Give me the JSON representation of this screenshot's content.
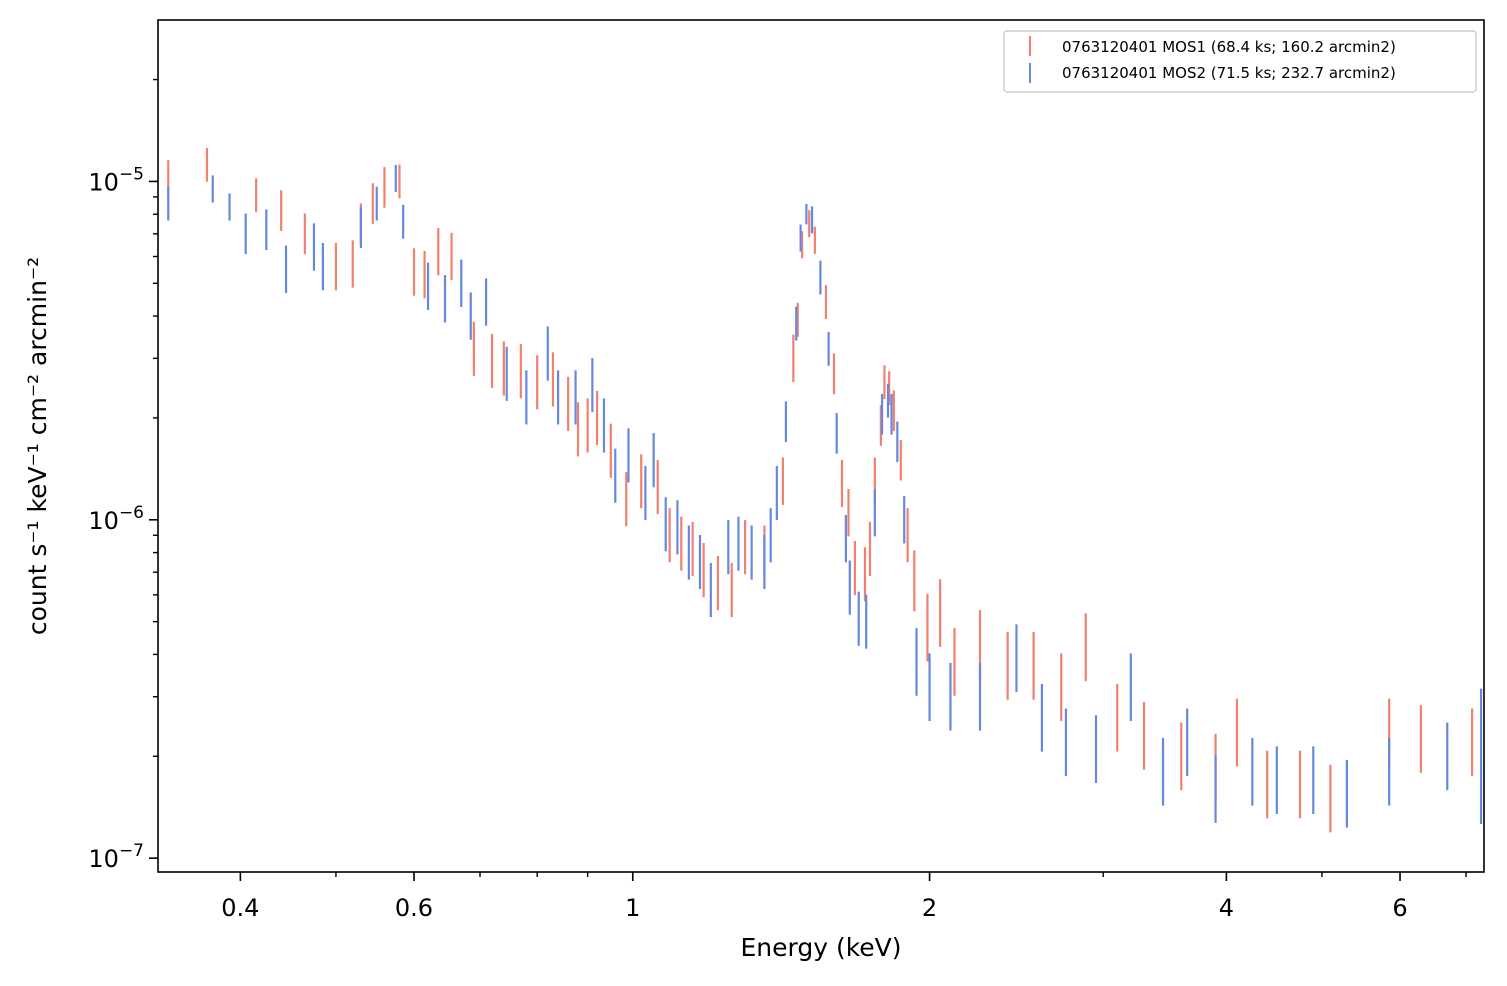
{
  "chart_data": {
    "type": "scatter",
    "title": "",
    "xlabel": "Energy (keV)",
    "ylabel": "count s⁻¹ keV⁻¹ cm⁻² arcmin⁻²",
    "xscale": "log",
    "yscale": "log",
    "xlim": [
      0.33,
      7.3
    ],
    "ylim": [
      9.1e-08,
      3e-05
    ],
    "x_ticks": [
      {
        "value": 0.4,
        "label": "0.4"
      },
      {
        "value": 0.6,
        "label": "0.6"
      },
      {
        "value": 1,
        "label": "1"
      },
      {
        "value": 2,
        "label": "2"
      },
      {
        "value": 4,
        "label": "4"
      },
      {
        "value": 6,
        "label": "6"
      }
    ],
    "y_ticks": [
      {
        "value": 1e-07,
        "base": "10",
        "exp": "−7"
      },
      {
        "value": 1e-06,
        "base": "10",
        "exp": "−6"
      },
      {
        "value": 1e-05,
        "base": "10",
        "exp": "−5"
      }
    ],
    "grid": false,
    "legend_position": "top-right",
    "series": [
      {
        "name": "0763120401 MOS1 (68.4 ks; 160.2 arcmin2)",
        "color": "#f08070",
        "points": [
          [
            0.338,
            1.03e-05,
            0.05
          ],
          [
            0.37,
            1.12e-05,
            0.05
          ],
          [
            0.415,
            9.1e-06,
            0.05
          ],
          [
            0.44,
            8.2e-06,
            0.06
          ],
          [
            0.465,
            7e-06,
            0.06
          ],
          [
            0.5,
            5.6e-06,
            0.07
          ],
          [
            0.52,
            5.7e-06,
            0.07
          ],
          [
            0.53,
            7.5e-06,
            0.06
          ],
          [
            0.545,
            8.6e-06,
            0.06
          ],
          [
            0.56,
            9.6e-06,
            0.06
          ],
          [
            0.58,
            1e-05,
            0.05
          ],
          [
            0.6,
            5.4e-06,
            0.07
          ],
          [
            0.615,
            5.3e-06,
            0.07
          ],
          [
            0.635,
            6.2e-06,
            0.07
          ],
          [
            0.655,
            6e-06,
            0.07
          ],
          [
            0.69,
            3.2e-06,
            0.08
          ],
          [
            0.72,
            2.95e-06,
            0.08
          ],
          [
            0.74,
            2.8e-06,
            0.08
          ],
          [
            0.77,
            2.75e-06,
            0.08
          ],
          [
            0.8,
            2.55e-06,
            0.08
          ],
          [
            0.83,
            2.6e-06,
            0.08
          ],
          [
            0.86,
            2.2e-06,
            0.08
          ],
          [
            0.88,
            1.85e-06,
            0.08
          ],
          [
            0.9,
            1.9e-06,
            0.08
          ],
          [
            0.92,
            2e-06,
            0.08
          ],
          [
            0.95,
            1.6e-06,
            0.08
          ],
          [
            0.985,
            1.15e-06,
            0.08
          ],
          [
            1.02,
            1.3e-06,
            0.08
          ],
          [
            1.06,
            1.25e-06,
            0.08
          ],
          [
            1.09,
            9e-07,
            0.08
          ],
          [
            1.12,
            8.5e-07,
            0.08
          ],
          [
            1.15,
            8.2e-07,
            0.08
          ],
          [
            1.18,
            7.1e-07,
            0.08
          ],
          [
            1.22,
            6.5e-07,
            0.08
          ],
          [
            1.26,
            6.2e-07,
            0.08
          ],
          [
            1.3,
            8.3e-07,
            0.08
          ],
          [
            1.36,
            8e-07,
            0.08
          ],
          [
            1.42,
            1.3e-06,
            0.07
          ],
          [
            1.455,
            3e-06,
            0.07
          ],
          [
            1.47,
            3.9e-06,
            0.05
          ],
          [
            1.485,
            6.5e-06,
            0.04
          ],
          [
            1.51,
            7.5e-06,
            0.04
          ],
          [
            1.53,
            6.7e-06,
            0.04
          ],
          [
            1.57,
            4.4e-06,
            0.05
          ],
          [
            1.6,
            2.7e-06,
            0.06
          ],
          [
            1.63,
            1.28e-06,
            0.07
          ],
          [
            1.655,
            1.05e-06,
            0.07
          ],
          [
            1.68,
            7.2e-07,
            0.08
          ],
          [
            1.72,
            6.9e-07,
            0.08
          ],
          [
            1.74,
            8.2e-07,
            0.08
          ],
          [
            1.76,
            1.3e-06,
            0.07
          ],
          [
            1.785,
            1.9e-06,
            0.06
          ],
          [
            1.8,
            2.55e-06,
            0.05
          ],
          [
            1.82,
            2.45e-06,
            0.05
          ],
          [
            1.84,
            2.1e-06,
            0.06
          ],
          [
            1.87,
            1.5e-06,
            0.06
          ],
          [
            1.9,
            9e-07,
            0.08
          ],
          [
            1.93,
            6.6e-07,
            0.09
          ],
          [
            1.99,
            4.8e-07,
            0.1
          ],
          [
            2.05,
            5.3e-07,
            0.1
          ],
          [
            2.12,
            3.8e-07,
            0.1
          ],
          [
            2.25,
            4.3e-07,
            0.1
          ],
          [
            2.4,
            3.7e-07,
            0.1
          ],
          [
            2.55,
            3.7e-07,
            0.1
          ],
          [
            2.72,
            3.2e-07,
            0.1
          ],
          [
            2.88,
            4.2e-07,
            0.1
          ],
          [
            3.1,
            2.6e-07,
            0.1
          ],
          [
            3.3,
            2.3e-07,
            0.1
          ],
          [
            3.6,
            2e-07,
            0.1
          ],
          [
            3.9,
            1.85e-07,
            0.1
          ],
          [
            4.1,
            2.35e-07,
            0.1
          ],
          [
            4.4,
            1.65e-07,
            0.1
          ],
          [
            4.75,
            1.65e-07,
            0.1
          ],
          [
            5.1,
            1.5e-07,
            0.1
          ],
          [
            5.85,
            2.35e-07,
            0.1
          ],
          [
            6.3,
            2.25e-07,
            0.1
          ],
          [
            7.1,
            2.2e-07,
            0.1
          ]
        ]
      },
      {
        "name": "0763120401 MOS2 (71.5 ks; 232.7 arcmin2)",
        "color": "#6688dd",
        "points": [
          [
            0.338,
            8.6e-06,
            0.05
          ],
          [
            0.375,
            9.5e-06,
            0.04
          ],
          [
            0.39,
            8.4e-06,
            0.04
          ],
          [
            0.405,
            7e-06,
            0.06
          ],
          [
            0.425,
            7.2e-06,
            0.06
          ],
          [
            0.445,
            5.5e-06,
            0.07
          ],
          [
            0.475,
            6.4e-06,
            0.07
          ],
          [
            0.485,
            5.6e-06,
            0.07
          ],
          [
            0.53,
            7.3e-06,
            0.06
          ],
          [
            0.55,
            8.6e-06,
            0.05
          ],
          [
            0.575,
            1.02e-05,
            0.04
          ],
          [
            0.585,
            7.6e-06,
            0.05
          ],
          [
            0.62,
            4.9e-06,
            0.07
          ],
          [
            0.645,
            4.5e-06,
            0.07
          ],
          [
            0.67,
            5e-06,
            0.07
          ],
          [
            0.685,
            4e-06,
            0.07
          ],
          [
            0.71,
            4.4e-06,
            0.07
          ],
          [
            0.745,
            2.7e-06,
            0.08
          ],
          [
            0.78,
            2.3e-06,
            0.08
          ],
          [
            0.82,
            3.1e-06,
            0.08
          ],
          [
            0.84,
            2.3e-06,
            0.08
          ],
          [
            0.875,
            2.3e-06,
            0.08
          ],
          [
            0.91,
            2.5e-06,
            0.08
          ],
          [
            0.935,
            1.9e-06,
            0.08
          ],
          [
            0.96,
            1.35e-06,
            0.08
          ],
          [
            0.99,
            1.55e-06,
            0.08
          ],
          [
            1.03,
            1.2e-06,
            0.08
          ],
          [
            1.05,
            1.5e-06,
            0.08
          ],
          [
            1.08,
            9.7e-07,
            0.08
          ],
          [
            1.11,
            9.5e-07,
            0.08
          ],
          [
            1.14,
            8e-07,
            0.08
          ],
          [
            1.17,
            7.5e-07,
            0.08
          ],
          [
            1.2,
            6.2e-07,
            0.08
          ],
          [
            1.25,
            8.3e-07,
            0.08
          ],
          [
            1.28,
            8.5e-07,
            0.08
          ],
          [
            1.32,
            8e-07,
            0.08
          ],
          [
            1.36,
            7.5e-07,
            0.08
          ],
          [
            1.38,
            9e-07,
            0.08
          ],
          [
            1.4,
            1.2e-06,
            0.08
          ],
          [
            1.43,
            1.95e-06,
            0.06
          ],
          [
            1.465,
            3.8e-06,
            0.05
          ],
          [
            1.48,
            6.8e-06,
            0.04
          ],
          [
            1.5,
            8e-06,
            0.03
          ],
          [
            1.52,
            7.7e-06,
            0.04
          ],
          [
            1.55,
            5.2e-06,
            0.05
          ],
          [
            1.58,
            3.2e-06,
            0.05
          ],
          [
            1.61,
            1.8e-06,
            0.06
          ],
          [
            1.645,
            8.8e-07,
            0.07
          ],
          [
            1.66,
            6.3e-07,
            0.08
          ],
          [
            1.695,
            5.1e-07,
            0.08
          ],
          [
            1.725,
            5e-07,
            0.08
          ],
          [
            1.76,
            1.05e-06,
            0.07
          ],
          [
            1.79,
            2.05e-06,
            0.06
          ],
          [
            1.815,
            2.25e-06,
            0.05
          ],
          [
            1.83,
            2.05e-06,
            0.06
          ],
          [
            1.855,
            1.7e-06,
            0.06
          ],
          [
            1.885,
            1e-06,
            0.07
          ],
          [
            1.94,
            3.8e-07,
            0.1
          ],
          [
            2.0,
            3.2e-07,
            0.1
          ],
          [
            2.1,
            3e-07,
            0.1
          ],
          [
            2.25,
            3e-07,
            0.1
          ],
          [
            2.45,
            3.9e-07,
            0.1
          ],
          [
            2.6,
            2.6e-07,
            0.1
          ],
          [
            2.75,
            2.2e-07,
            0.1
          ],
          [
            2.95,
            2.1e-07,
            0.1
          ],
          [
            3.2,
            3.2e-07,
            0.1
          ],
          [
            3.45,
            1.8e-07,
            0.1
          ],
          [
            3.65,
            2.2e-07,
            0.1
          ],
          [
            3.9,
            1.6e-07,
            0.1
          ],
          [
            4.25,
            1.8e-07,
            0.1
          ],
          [
            4.5,
            1.7e-07,
            0.1
          ],
          [
            4.9,
            1.7e-07,
            0.1
          ],
          [
            5.3,
            1.55e-07,
            0.1
          ],
          [
            5.85,
            1.8e-07,
            0.1
          ],
          [
            6.7,
            2e-07,
            0.1
          ],
          [
            7.25,
            2e-07,
            0.2
          ]
        ]
      }
    ]
  }
}
